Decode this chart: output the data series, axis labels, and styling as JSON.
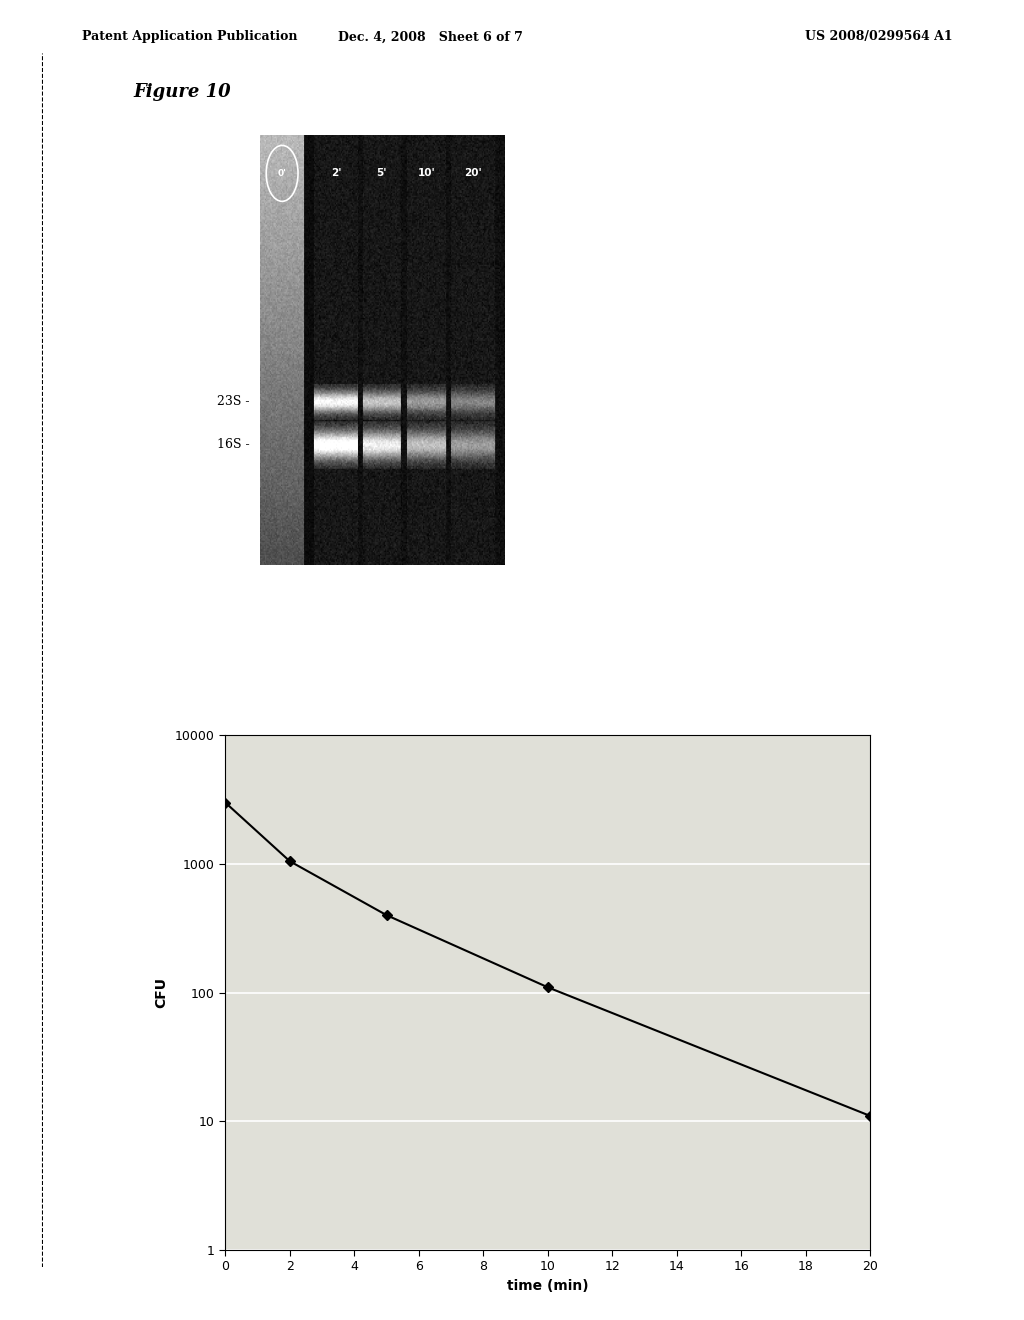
{
  "header_left": "Patent Application Publication",
  "header_mid": "Dec. 4, 2008   Sheet 6 of 7",
  "header_right": "US 2008/0299564 A1",
  "figure_label": "Figure 10",
  "gel_lane_labels": [
    "0'",
    "2'",
    "5'",
    "10'",
    "20'"
  ],
  "gel_band_labels_23s": "23S -",
  "gel_band_labels_16s": "16S -",
  "graph_x": [
    0,
    2,
    5,
    10,
    20
  ],
  "graph_y": [
    3000,
    1050,
    400,
    110,
    11
  ],
  "graph_xlabel": "time (min)",
  "graph_ylabel": "CFU",
  "graph_xticks": [
    0,
    2,
    4,
    6,
    8,
    10,
    12,
    14,
    16,
    18,
    20
  ],
  "graph_yticks": [
    1,
    10,
    100,
    1000,
    10000
  ],
  "graph_ylim": [
    1,
    10000
  ],
  "graph_xlim": [
    0,
    20
  ],
  "background_color": "#ffffff",
  "line_color": "#000000",
  "marker_color": "#000000",
  "graph_bg_color": "#d8d8d0"
}
